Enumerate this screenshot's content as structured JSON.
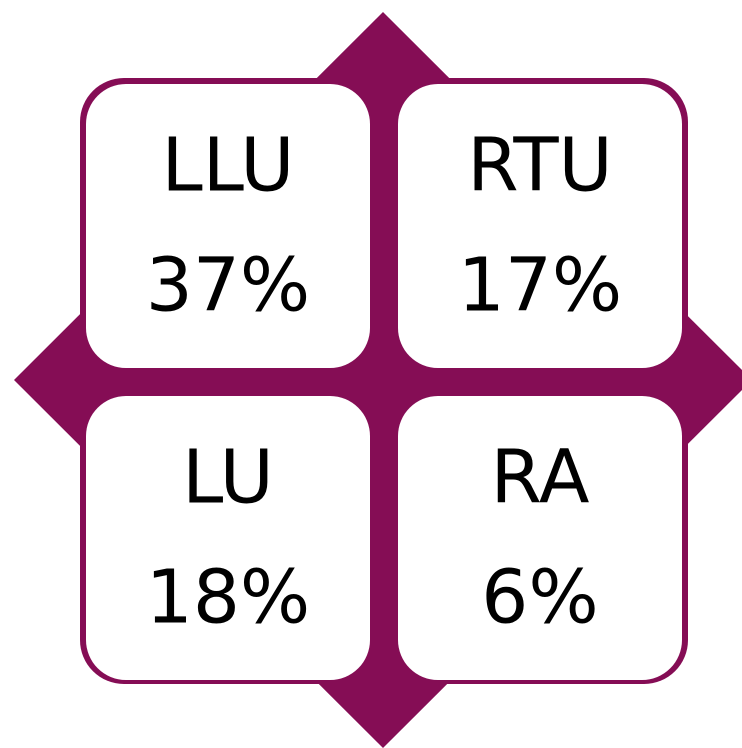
{
  "quadrants": [
    {
      "label": "LLU",
      "value": "37%"
    },
    {
      "label": "RTU",
      "value": "17%"
    },
    {
      "label": "LU",
      "value": "18%"
    },
    {
      "label": "RA",
      "value": "6%"
    }
  ]
}
